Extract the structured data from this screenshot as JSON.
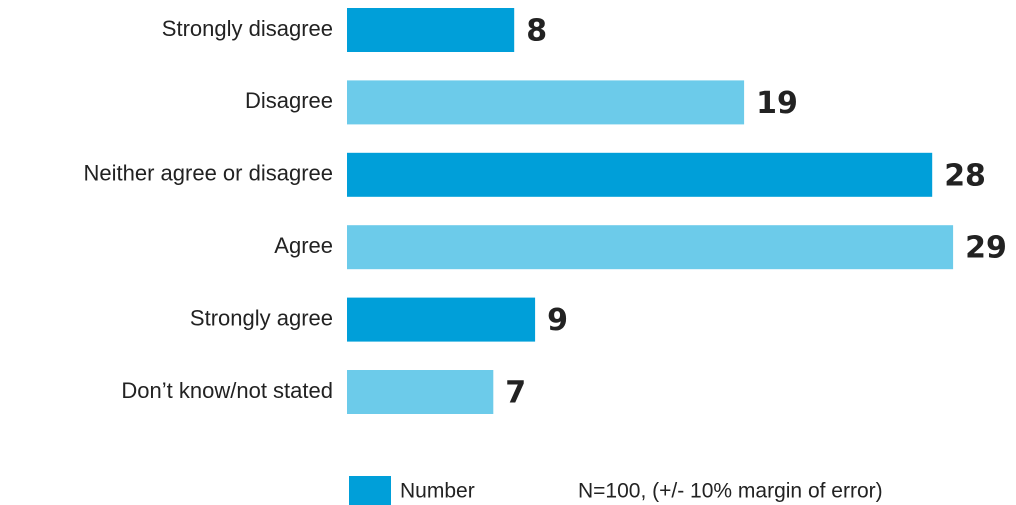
{
  "chart_data": {
    "type": "bar",
    "orientation": "horizontal",
    "categories": [
      "Strongly disagree",
      "Disagree",
      "Neither agree or disagree",
      "Agree",
      "Strongly agree",
      "Don’t know/not stated"
    ],
    "series": [
      {
        "name": "Number",
        "color": "#009fd9",
        "values": [
          8,
          19,
          28,
          29,
          9,
          7
        ]
      }
    ],
    "bar_colors": [
      "#009fd9",
      "#6ccbea",
      "#009fd9",
      "#6ccbea",
      "#009fd9",
      "#6ccbea"
    ],
    "note": "N=100, (+/- 10% margin of error)",
    "legend": "bottom"
  }
}
